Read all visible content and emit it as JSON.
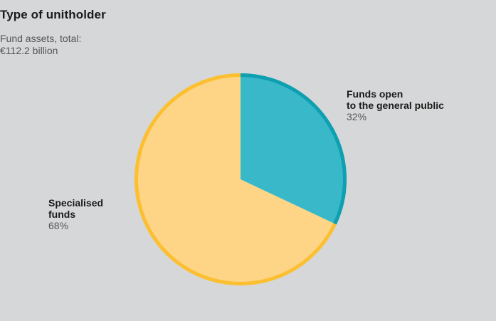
{
  "chart_data": {
    "type": "pie",
    "title": "Type of unitholder",
    "subtitle_lines": [
      "Fund assets, total:",
      "€112.2 billion"
    ],
    "slices": [
      {
        "name_lines": [
          "Funds open",
          "to the general public"
        ],
        "value": 32,
        "value_label": "32%",
        "fill": "#38b8c8",
        "stroke": "#0e9fb0"
      },
      {
        "name_lines": [
          "Specialised",
          "funds"
        ],
        "value": 68,
        "value_label": "68%",
        "fill": "#fed587",
        "stroke": "#fbbf30"
      }
    ],
    "start_angle": "12 o'clock",
    "direction": "clockwise"
  }
}
